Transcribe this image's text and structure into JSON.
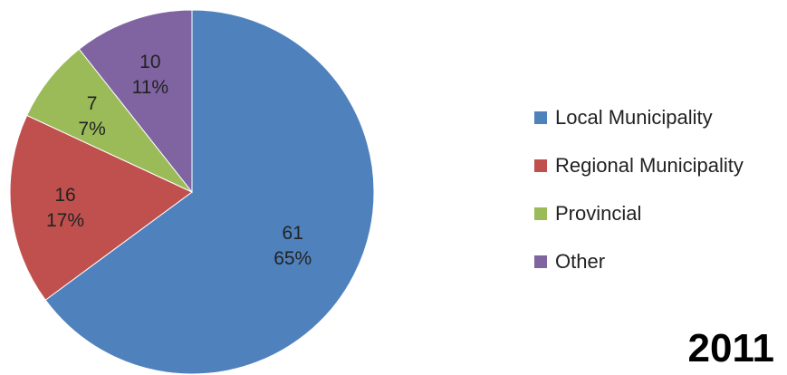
{
  "chart_data": {
    "type": "pie",
    "title": "",
    "slices": [
      {
        "label": "Local Municipality",
        "value": 61,
        "percent": "65%",
        "color": "#4F81BD"
      },
      {
        "label": "Regional Municipality",
        "value": 16,
        "percent": "17%",
        "color": "#C0504D"
      },
      {
        "label": "Provincial",
        "value": 7,
        "percent": "7%",
        "color": "#9BBB59"
      },
      {
        "label": "Other",
        "value": 10,
        "percent": "11%",
        "color": "#8064A2"
      }
    ],
    "legend_position": "right",
    "start_angle": "top, clockwise"
  },
  "year_label": "2011"
}
